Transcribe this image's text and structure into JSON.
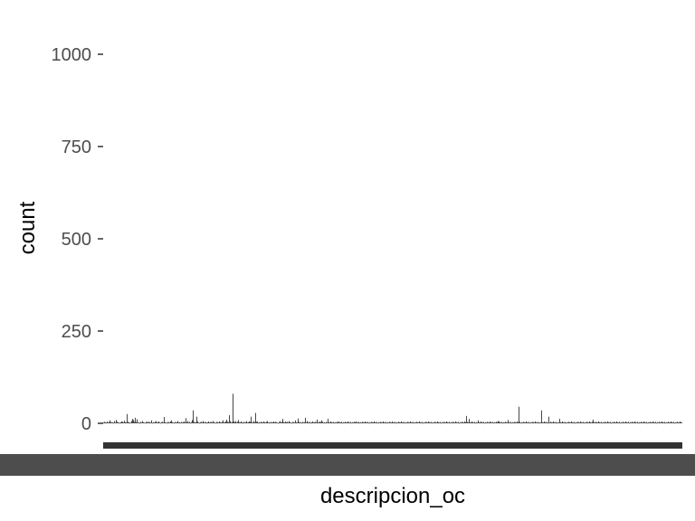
{
  "chart_data": {
    "type": "bar",
    "title": "",
    "xlabel": "descripcion_oc",
    "ylabel": "count",
    "ylim": [
      0,
      1000
    ],
    "yticks": [
      0,
      250,
      500,
      750,
      1000
    ],
    "ytick_labels": [
      "0",
      "250",
      "500",
      "750",
      "1000"
    ],
    "grid": false,
    "legend": "none",
    "bar_color": "#333333",
    "x_tick_label_color": "#4d4d4d",
    "category_count": 640,
    "values": [
      2,
      4,
      3,
      1,
      5,
      2,
      3,
      8,
      4,
      2,
      3,
      1,
      6,
      2,
      9,
      4,
      3,
      2,
      1,
      3,
      5,
      4,
      2,
      7,
      3,
      2,
      25,
      4,
      3,
      1,
      2,
      6,
      12,
      9,
      4,
      15,
      3,
      11,
      2,
      3,
      1,
      4,
      2,
      6,
      3,
      2,
      1,
      3,
      5,
      2,
      4,
      3,
      2,
      8,
      1,
      3,
      2,
      4,
      6,
      2,
      3,
      5,
      2,
      1,
      3,
      4,
      2,
      17,
      3,
      2,
      1,
      4,
      3,
      2,
      5,
      8,
      3,
      2,
      1,
      4,
      2,
      3,
      6,
      2,
      3,
      1,
      4,
      2,
      3,
      5,
      2,
      14,
      3,
      6,
      2,
      4,
      1,
      3,
      9,
      35,
      4,
      2,
      3,
      18,
      5,
      2,
      1,
      3,
      4,
      2,
      6,
      3,
      2,
      4,
      1,
      3,
      5,
      2,
      3,
      4,
      2,
      6,
      3,
      2,
      1,
      4,
      3,
      2,
      5,
      3,
      2,
      4,
      8,
      2,
      3,
      5,
      10,
      4,
      3,
      22,
      6,
      2,
      3,
      80,
      5,
      3,
      6,
      2,
      4,
      9,
      3,
      2,
      5,
      3,
      1,
      4,
      2,
      3,
      6,
      2,
      3,
      5,
      4,
      18,
      3,
      2,
      6,
      3,
      28,
      4,
      5,
      1,
      3,
      2,
      4,
      3,
      2,
      5,
      3,
      2,
      4,
      6,
      2,
      3,
      1,
      4,
      2,
      3,
      5,
      2,
      4,
      3,
      2,
      1,
      3,
      6,
      2,
      4,
      12,
      3,
      2,
      5,
      3,
      4,
      2,
      6,
      3,
      2,
      1,
      4,
      3,
      2,
      8,
      3,
      2,
      13,
      4,
      2,
      3,
      1,
      4,
      2,
      3,
      15,
      2,
      6,
      3,
      2,
      4,
      1,
      3,
      5,
      2,
      3,
      4,
      2,
      10,
      3,
      2,
      5,
      3,
      8,
      4,
      2,
      3,
      1,
      4,
      2,
      12,
      3,
      2,
      5,
      3,
      2,
      4,
      1,
      3,
      2,
      4,
      3,
      5,
      2,
      3,
      4,
      1,
      3,
      2,
      4,
      3,
      2,
      5,
      3,
      2,
      4,
      1,
      3,
      2,
      4,
      3,
      5,
      2,
      3,
      4,
      1,
      3,
      2,
      4,
      3,
      2,
      5,
      3,
      2,
      4,
      1,
      3,
      2,
      4,
      3,
      2,
      5,
      3,
      2,
      4,
      1,
      3,
      2,
      4,
      3,
      2,
      5,
      3,
      2,
      4,
      1,
      3,
      2,
      4,
      3,
      2,
      5,
      3,
      2,
      4,
      1,
      3,
      2,
      4,
      3,
      2,
      5,
      3,
      2,
      4,
      1,
      3,
      2,
      4,
      3,
      2,
      5,
      3,
      2,
      4,
      1,
      3,
      2,
      4,
      3,
      2,
      5,
      3,
      2,
      4,
      1,
      3,
      2,
      4,
      3,
      2,
      5,
      3,
      2,
      4,
      1,
      3,
      2,
      4,
      3,
      2,
      5,
      3,
      2,
      4,
      1,
      3,
      2,
      4,
      3,
      2,
      5,
      3,
      2,
      4,
      1,
      3,
      2,
      4,
      3,
      2,
      5,
      3,
      2,
      4,
      1,
      3,
      2,
      4,
      3,
      2,
      5,
      3,
      20,
      4,
      2,
      12,
      3,
      2,
      5,
      3,
      2,
      4,
      1,
      3,
      2,
      8,
      3,
      2,
      5,
      3,
      2,
      4,
      1,
      3,
      2,
      4,
      3,
      2,
      5,
      3,
      2,
      4,
      1,
      3,
      2,
      4,
      3,
      6,
      5,
      3,
      2,
      4,
      1,
      3,
      2,
      4,
      3,
      2,
      9,
      3,
      2,
      4,
      1,
      3,
      2,
      4,
      3,
      2,
      5,
      3,
      45,
      4,
      1,
      3,
      2,
      4,
      3,
      2,
      5,
      3,
      2,
      4,
      1,
      3,
      2,
      4,
      3,
      2,
      5,
      3,
      2,
      4,
      1,
      3,
      2,
      35,
      3,
      2,
      5,
      3,
      2,
      4,
      1,
      18,
      2,
      4,
      3,
      2,
      5,
      3,
      2,
      4,
      1,
      3,
      2,
      12,
      3,
      2,
      5,
      3,
      2,
      4,
      1,
      3,
      2,
      4,
      3,
      2,
      5,
      3,
      2,
      4,
      1,
      3,
      2,
      4,
      3,
      2,
      5,
      3,
      2,
      4,
      1,
      3,
      2,
      4,
      3,
      2,
      5,
      3,
      2,
      4,
      10,
      3,
      2,
      4,
      3,
      2,
      5,
      3,
      2,
      4,
      1,
      3,
      2,
      4,
      3,
      2,
      5,
      3,
      2,
      4,
      1,
      3,
      2,
      4,
      3,
      2,
      5,
      3,
      2,
      4,
      1,
      3,
      2,
      4,
      3,
      2,
      5,
      3,
      2,
      4,
      1,
      3,
      2,
      4,
      3,
      2,
      5,
      3,
      2,
      4,
      1,
      3,
      2,
      4,
      3,
      2,
      5,
      3,
      2,
      4,
      1,
      3,
      2,
      4,
      3,
      2,
      5,
      3,
      2,
      4,
      1,
      3,
      2,
      4,
      3,
      2,
      5,
      3,
      2,
      4,
      1,
      3,
      2,
      4,
      3,
      2,
      5,
      3,
      2,
      4,
      1,
      3,
      2,
      4,
      3,
      2,
      5,
      3,
      2
    ]
  }
}
